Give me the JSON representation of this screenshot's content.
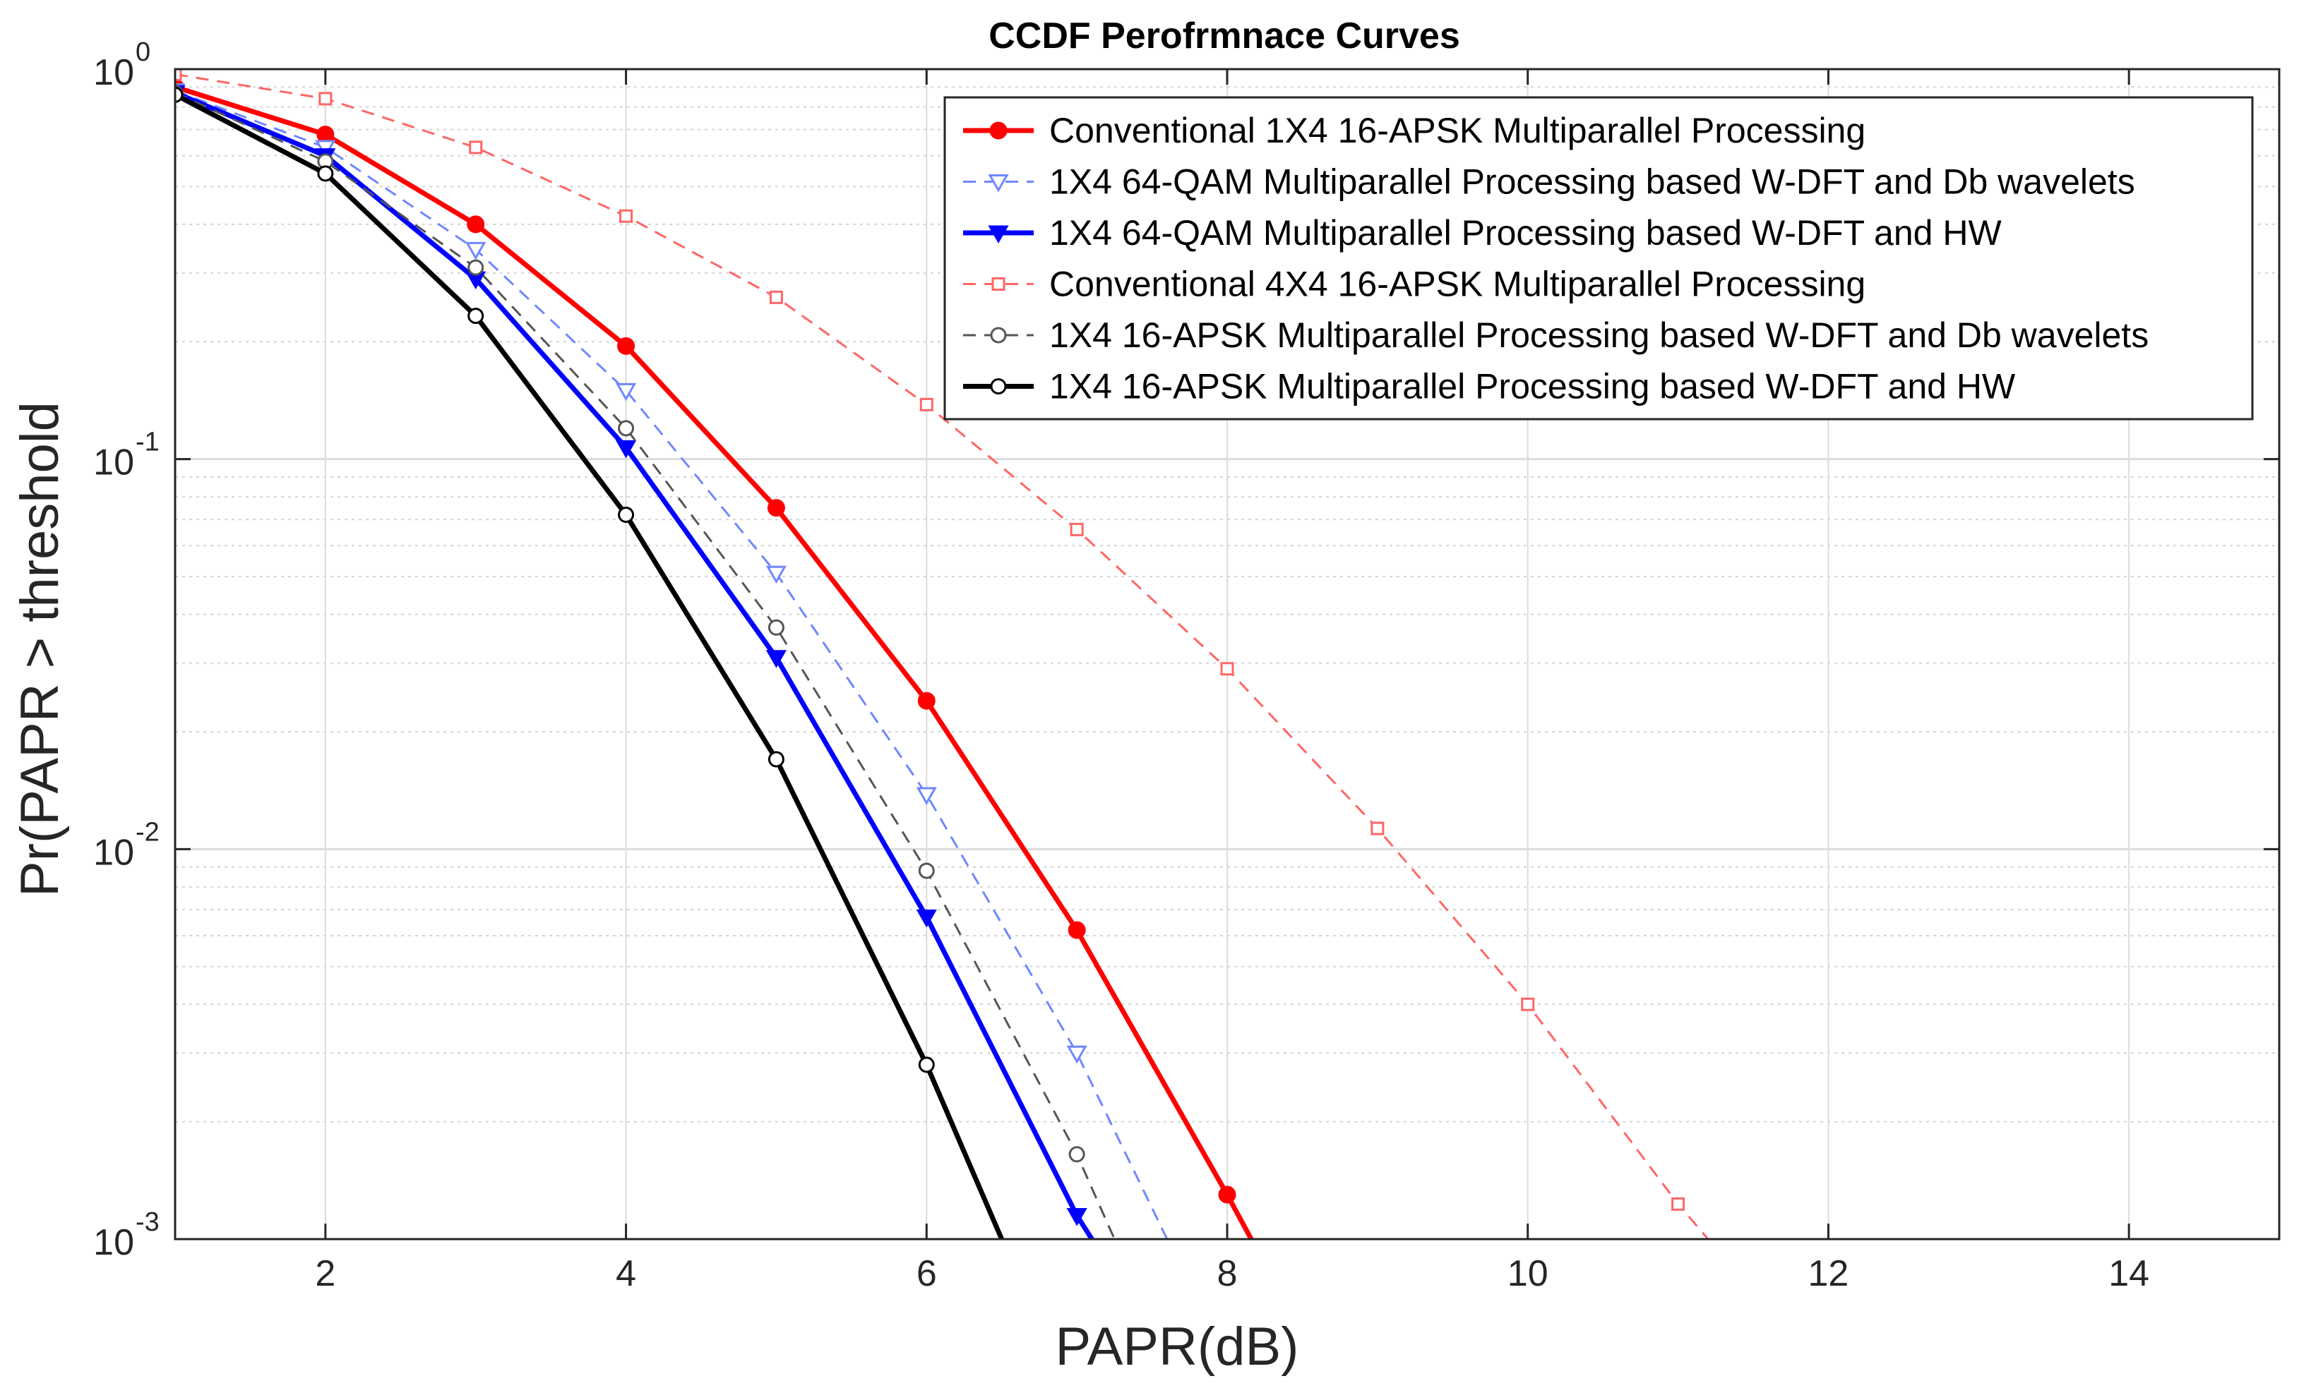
{
  "chart_data": {
    "type": "line",
    "title": "CCDF Perofrmnace Curves",
    "xlabel": "PAPR(dB)",
    "ylabel": "Pr(PAPR > threshold",
    "xlim": [
      1,
      15
    ],
    "ylim": [
      0.001,
      1
    ],
    "yscale": "log",
    "grid": true,
    "minor_grid": true,
    "x_ticks": [
      2,
      4,
      6,
      8,
      10,
      12,
      14
    ],
    "x_tick_labels": [
      "2",
      "4",
      "6",
      "8",
      "10",
      "12",
      "14"
    ],
    "y_ticks": [
      {
        "value": 1,
        "base": "10",
        "exp": "0"
      },
      {
        "value": 0.1,
        "base": "10",
        "exp": "-1"
      },
      {
        "value": 0.01,
        "base": "10",
        "exp": "-2"
      },
      {
        "value": 0.001,
        "base": "10",
        "exp": "-3"
      }
    ],
    "legend_position": "top-right",
    "series": [
      {
        "name": "Conventional 1X4 16-APSK Multiparallel Processing",
        "color": "#ff0000",
        "line_style": "solid",
        "marker": "filled-circle",
        "x": [
          1,
          2,
          3,
          4,
          5,
          6,
          7,
          8,
          8.16
        ],
        "y": [
          0.9,
          0.68,
          0.4,
          0.195,
          0.075,
          0.024,
          0.0062,
          0.0013,
          0.001
        ]
      },
      {
        "name": "1X4 64-QAM Multiparallel Processing based W-DFT and Db wavelets",
        "color": "#6f87ff",
        "line_style": "dashed",
        "marker": "open-triangle-down",
        "x": [
          1,
          2,
          3,
          4,
          5,
          6,
          7,
          7.6
        ],
        "y": [
          0.88,
          0.63,
          0.345,
          0.15,
          0.051,
          0.0138,
          0.003,
          0.001
        ]
      },
      {
        "name": "1X4 64-QAM Multiparallel Processing based W-DFT and HW",
        "color": "#0000ff",
        "line_style": "solid",
        "marker": "filled-triangle-down",
        "x": [
          1,
          2,
          3,
          4,
          5,
          6,
          7,
          7.1
        ],
        "y": [
          0.87,
          0.6,
          0.29,
          0.107,
          0.031,
          0.0067,
          0.00115,
          0.001
        ]
      },
      {
        "name": "Conventional 4X4 16-APSK Multiparallel Processing",
        "color": "#ff6666",
        "line_style": "dashed",
        "marker": "open-square",
        "x": [
          1,
          2,
          3,
          4,
          5,
          6,
          7,
          8,
          9,
          10,
          11,
          11.2
        ],
        "y": [
          0.97,
          0.84,
          0.63,
          0.42,
          0.26,
          0.138,
          0.066,
          0.029,
          0.0113,
          0.004,
          0.00123,
          0.001
        ]
      },
      {
        "name": "1X4 16-APSK Multiparallel Processing based W-DFT and Db wavelets",
        "color": "#555555",
        "line_style": "dashed",
        "marker": "open-circle",
        "x": [
          1,
          2,
          3,
          4,
          5,
          6,
          7,
          7.25
        ],
        "y": [
          0.87,
          0.58,
          0.31,
          0.12,
          0.037,
          0.0088,
          0.00165,
          0.001
        ]
      },
      {
        "name": "1X4 16-APSK Multiparallel Processing based W-DFT and HW",
        "color": "#000000",
        "line_style": "solid",
        "marker": "open-circle",
        "x": [
          1,
          2,
          3,
          4,
          5,
          6,
          6.5
        ],
        "y": [
          0.86,
          0.54,
          0.233,
          0.072,
          0.017,
          0.0028,
          0.001
        ]
      }
    ]
  }
}
